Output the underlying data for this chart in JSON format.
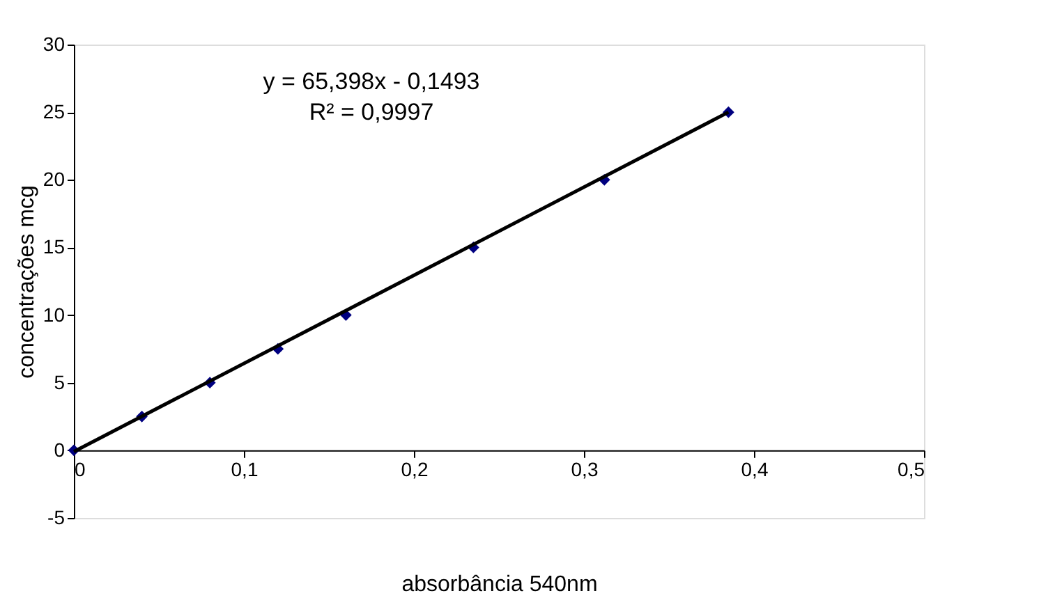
{
  "chart_data": {
    "type": "scatter",
    "xlabel": "absorbância 540nm",
    "ylabel": "concentrações mcg",
    "x": [
      0,
      0.04,
      0.08,
      0.12,
      0.16,
      0.235,
      0.312,
      0.385
    ],
    "series": [
      {
        "type": "scatter",
        "color": "#000080",
        "values": [
          0,
          2.5,
          5,
          7.5,
          10,
          15,
          20,
          25
        ],
        "marker": "diamond"
      },
      {
        "type": "line",
        "color": "#000000",
        "x": [
          0,
          0.385
        ],
        "values": [
          -0.1,
          25.0
        ],
        "line_style": "solid"
      }
    ],
    "xlim": [
      0,
      0.5
    ],
    "ylim": [
      -5,
      30
    ],
    "xticks": [
      0,
      {
        "value": 0.1,
        "label": "0,1"
      },
      {
        "value": 0.2,
        "label": "0,2"
      },
      {
        "value": 0.3,
        "label": "0,3"
      },
      {
        "value": 0.4,
        "label": "0,4"
      },
      {
        "value": 0.5,
        "label": "0,5"
      }
    ],
    "yticks": [
      -5,
      0,
      5,
      10,
      15,
      20,
      25,
      30
    ],
    "annotations": [
      "y = 65,398x - 0,1493",
      "R² = 0,9997"
    ],
    "grid": false
  }
}
